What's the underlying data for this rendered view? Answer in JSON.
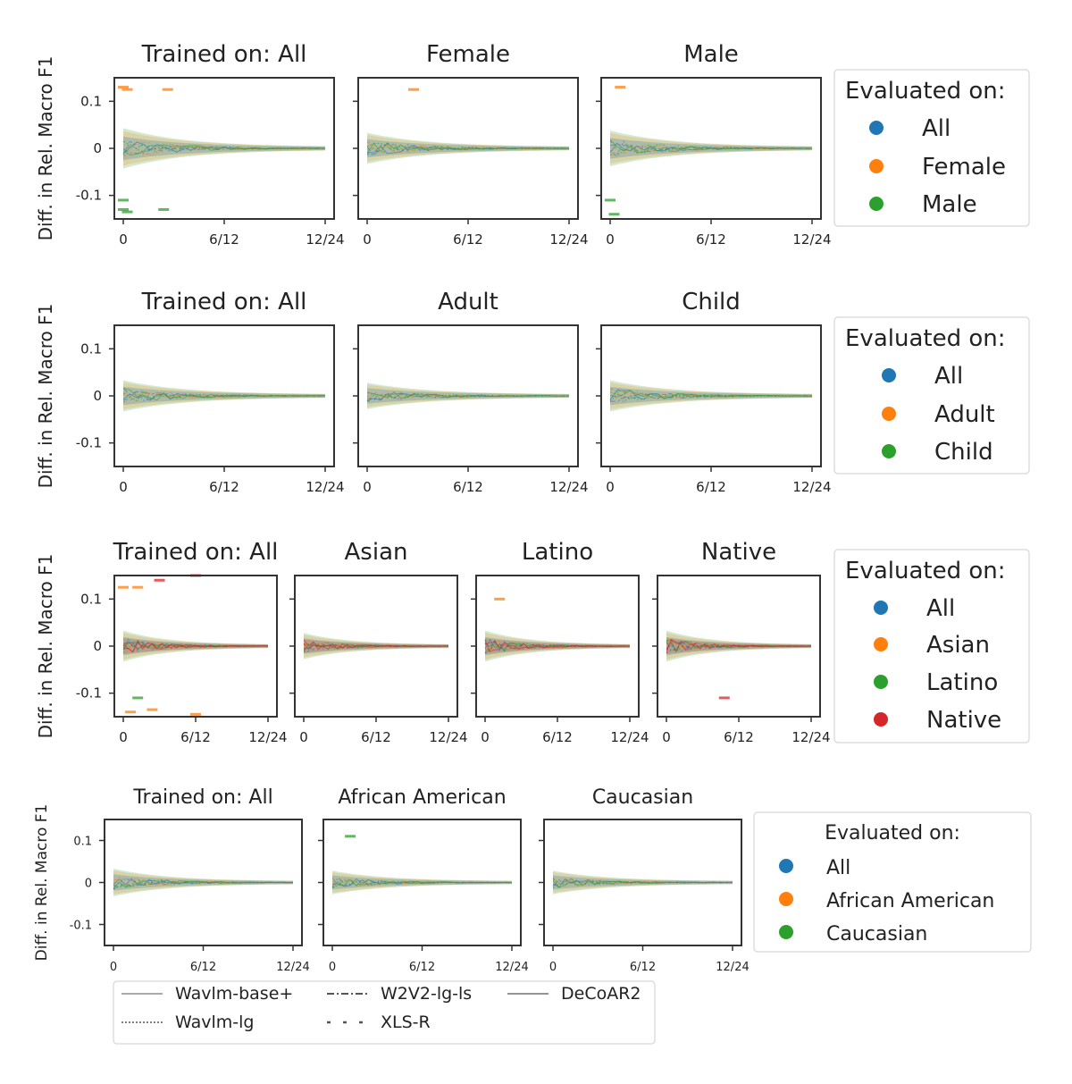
{
  "chart_data": {
    "type": "line",
    "ylabel": "Diff. in Rel. Macro F1",
    "ylim": [
      -0.15,
      0.15
    ],
    "yticks": [
      {
        "v": 0.1,
        "label": "0.1"
      },
      {
        "v": 0,
        "label": "0"
      },
      {
        "v": -0.1,
        "label": "-0.1"
      }
    ],
    "xticks": [
      {
        "v": 0,
        "label": "0"
      },
      {
        "v": 0.5,
        "label": "6/12"
      },
      {
        "v": 1,
        "label": "12/24"
      }
    ],
    "legend_title": "Evaluated on:",
    "colors": {
      "All": "#1f77b4",
      "Female": "#ff7f0e",
      "Male": "#2ca02c",
      "Adult": "#ff7f0e",
      "Child": "#2ca02c",
      "Asian": "#ff7f0e",
      "Latino": "#2ca02c",
      "Native": "#d62728",
      "African American": "#ff7f0e",
      "Caucasian": "#2ca02c"
    },
    "model_legend": [
      {
        "name": "Wavlm-base+",
        "style": "thin solid"
      },
      {
        "name": "W2V2-lg-ls",
        "style": "dash-dot"
      },
      {
        "name": "DeCoAR2",
        "style": "solid"
      },
      {
        "name": "Wavlm-lg",
        "style": "dotted"
      },
      {
        "name": "XLS-R",
        "style": "sparse dash"
      }
    ],
    "rows": [
      {
        "panels": [
          {
            "title": "Trained on: All",
            "spread": 0.04,
            "outliers": [
              {
                "x": 0.0,
                "y": 0.13,
                "series": "Female"
              },
              {
                "x": 0.02,
                "y": 0.125,
                "series": "Female"
              },
              {
                "x": 0.22,
                "y": 0.125,
                "series": "Female"
              },
              {
                "x": 0.0,
                "y": -0.13,
                "series": "Male"
              },
              {
                "x": 0.02,
                "y": -0.135,
                "series": "Male"
              },
              {
                "x": 0.2,
                "y": -0.13,
                "series": "Male"
              },
              {
                "x": 0.0,
                "y": -0.11,
                "series": "Male"
              }
            ]
          },
          {
            "title": "Female",
            "spread": 0.03,
            "outliers": [
              {
                "x": 0.23,
                "y": 0.125,
                "series": "Female"
              }
            ]
          },
          {
            "title": "Male",
            "spread": 0.035,
            "outliers": [
              {
                "x": 0.05,
                "y": 0.13,
                "series": "Female"
              },
              {
                "x": 0.0,
                "y": -0.11,
                "series": "Male"
              },
              {
                "x": 0.02,
                "y": -0.14,
                "series": "Male"
              }
            ]
          }
        ],
        "legend": [
          "All",
          "Female",
          "Male"
        ]
      },
      {
        "panels": [
          {
            "title": "Trained on: All",
            "spread": 0.03,
            "outliers": []
          },
          {
            "title": "Adult",
            "spread": 0.025,
            "outliers": []
          },
          {
            "title": "Child",
            "spread": 0.03,
            "outliers": []
          }
        ],
        "legend": [
          "All",
          "Adult",
          "Child"
        ]
      },
      {
        "panels": [
          {
            "title": "Trained on: All",
            "spread": 0.03,
            "outliers": [
              {
                "x": 0.0,
                "y": 0.125,
                "series": "Female"
              },
              {
                "x": 0.1,
                "y": 0.125,
                "series": "Female"
              },
              {
                "x": 0.25,
                "y": 0.14,
                "series": "Native"
              },
              {
                "x": 0.5,
                "y": 0.15,
                "series": "Native"
              },
              {
                "x": 0.1,
                "y": -0.11,
                "series": "Male"
              },
              {
                "x": 0.05,
                "y": -0.14,
                "series": "Female"
              },
              {
                "x": 0.2,
                "y": -0.135,
                "series": "Female"
              },
              {
                "x": 0.5,
                "y": -0.145,
                "series": "Female"
              }
            ]
          },
          {
            "title": "Asian",
            "spread": 0.025,
            "outliers": []
          },
          {
            "title": "Latino",
            "spread": 0.03,
            "outliers": [
              {
                "x": 0.1,
                "y": 0.1,
                "series": "Female"
              }
            ]
          },
          {
            "title": "Native",
            "spread": 0.03,
            "outliers": [
              {
                "x": 0.4,
                "y": -0.11,
                "series": "Native"
              }
            ]
          }
        ],
        "legend": [
          "All",
          "Asian",
          "Latino",
          "Native"
        ]
      },
      {
        "panels": [
          {
            "title": "Trained on: All",
            "spread": 0.03,
            "outliers": []
          },
          {
            "title": "African American",
            "spread": 0.025,
            "outliers": [
              {
                "x": 0.1,
                "y": 0.11,
                "series": "Male"
              }
            ]
          },
          {
            "title": "Caucasian",
            "spread": 0.025,
            "outliers": []
          }
        ],
        "legend": [
          "All",
          "African American",
          "Caucasian"
        ]
      }
    ]
  }
}
